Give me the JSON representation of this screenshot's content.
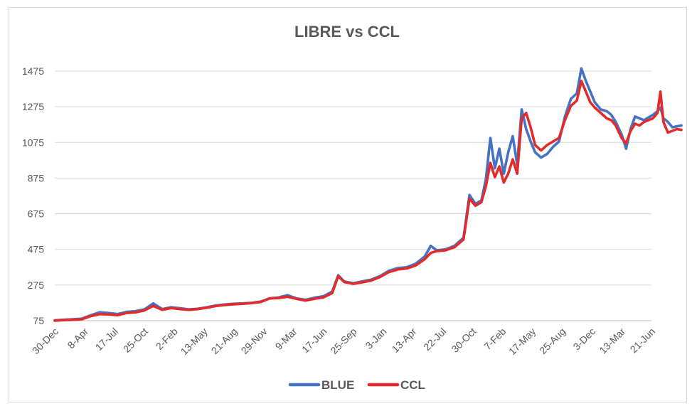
{
  "chart_data": {
    "type": "line",
    "title": "LIBRE vs CCL",
    "ylim": [
      75,
      1475
    ],
    "yticks": [
      75,
      275,
      475,
      675,
      875,
      1075,
      1275,
      1475
    ],
    "x_labels": [
      "30-Dec",
      "8-Apr",
      "17-Jul",
      "25-Oct",
      "2-Feb",
      "13-May",
      "21-Aug",
      "29-Nov",
      "9-Mar",
      "17-Jun",
      "25-Sep",
      "3-Jan",
      "13-Apr",
      "22-Jul",
      "30-Oct",
      "7-Feb",
      "17-May",
      "25-Aug",
      "3-Dec",
      "13-Mar",
      "21-Jun"
    ],
    "legend_position": "bottom",
    "grid": true,
    "series": [
      {
        "name": "BLUE",
        "color": "#4472c4",
        "values": [
          [
            0,
            77
          ],
          [
            0.3,
            80
          ],
          [
            0.6,
            83
          ],
          [
            0.9,
            86
          ],
          [
            1.2,
            105
          ],
          [
            1.5,
            122
          ],
          [
            1.8,
            118
          ],
          [
            2.1,
            112
          ],
          [
            2.4,
            124
          ],
          [
            2.7,
            128
          ],
          [
            3.0,
            138
          ],
          [
            3.3,
            172
          ],
          [
            3.6,
            140
          ],
          [
            3.9,
            150
          ],
          [
            4.2,
            145
          ],
          [
            4.5,
            138
          ],
          [
            4.8,
            142
          ],
          [
            5.1,
            150
          ],
          [
            5.4,
            160
          ],
          [
            5.7,
            166
          ],
          [
            6.0,
            170
          ],
          [
            6.3,
            172
          ],
          [
            6.6,
            175
          ],
          [
            6.9,
            182
          ],
          [
            7.2,
            200
          ],
          [
            7.5,
            205
          ],
          [
            7.8,
            218
          ],
          [
            8.1,
            200
          ],
          [
            8.4,
            192
          ],
          [
            8.7,
            204
          ],
          [
            9.0,
            212
          ],
          [
            9.3,
            238
          ],
          [
            9.5,
            330
          ],
          [
            9.7,
            295
          ],
          [
            10.0,
            285
          ],
          [
            10.3,
            295
          ],
          [
            10.6,
            305
          ],
          [
            10.9,
            325
          ],
          [
            11.2,
            355
          ],
          [
            11.5,
            370
          ],
          [
            11.8,
            375
          ],
          [
            12.1,
            395
          ],
          [
            12.4,
            435
          ],
          [
            12.6,
            495
          ],
          [
            12.8,
            470
          ],
          [
            13.1,
            475
          ],
          [
            13.4,
            495
          ],
          [
            13.7,
            540
          ],
          [
            13.9,
            780
          ],
          [
            14.1,
            730
          ],
          [
            14.3,
            750
          ],
          [
            14.45,
            870
          ],
          [
            14.6,
            1100
          ],
          [
            14.75,
            930
          ],
          [
            14.9,
            1040
          ],
          [
            15.05,
            900
          ],
          [
            15.2,
            1020
          ],
          [
            15.35,
            1110
          ],
          [
            15.5,
            950
          ],
          [
            15.65,
            1260
          ],
          [
            15.8,
            1150
          ],
          [
            15.95,
            1080
          ],
          [
            16.1,
            1020
          ],
          [
            16.3,
            990
          ],
          [
            16.5,
            1010
          ],
          [
            16.7,
            1050
          ],
          [
            16.9,
            1080
          ],
          [
            17.1,
            1220
          ],
          [
            17.3,
            1320
          ],
          [
            17.5,
            1350
          ],
          [
            17.65,
            1490
          ],
          [
            17.8,
            1420
          ],
          [
            17.95,
            1360
          ],
          [
            18.1,
            1300
          ],
          [
            18.3,
            1260
          ],
          [
            18.5,
            1250
          ],
          [
            18.65,
            1230
          ],
          [
            18.8,
            1190
          ],
          [
            19.0,
            1120
          ],
          [
            19.15,
            1040
          ],
          [
            19.3,
            1150
          ],
          [
            19.45,
            1220
          ],
          [
            19.6,
            1210
          ],
          [
            19.75,
            1200
          ],
          [
            19.9,
            1215
          ],
          [
            20.05,
            1230
          ],
          [
            20.2,
            1250
          ],
          [
            20.3,
            1270
          ],
          [
            20.4,
            1210
          ],
          [
            20.55,
            1190
          ],
          [
            20.7,
            1160
          ],
          [
            20.85,
            1165
          ],
          [
            21.0,
            1170
          ]
        ]
      },
      {
        "name": "CCL",
        "color": "#e32b2b",
        "values": [
          [
            0,
            75
          ],
          [
            0.3,
            78
          ],
          [
            0.6,
            80
          ],
          [
            0.9,
            83
          ],
          [
            1.2,
            100
          ],
          [
            1.5,
            112
          ],
          [
            1.8,
            110
          ],
          [
            2.1,
            106
          ],
          [
            2.4,
            118
          ],
          [
            2.7,
            122
          ],
          [
            3.0,
            132
          ],
          [
            3.3,
            158
          ],
          [
            3.6,
            136
          ],
          [
            3.9,
            146
          ],
          [
            4.2,
            140
          ],
          [
            4.5,
            136
          ],
          [
            4.8,
            140
          ],
          [
            5.1,
            148
          ],
          [
            5.4,
            157
          ],
          [
            5.7,
            163
          ],
          [
            6.0,
            167
          ],
          [
            6.3,
            170
          ],
          [
            6.6,
            174
          ],
          [
            6.9,
            180
          ],
          [
            7.2,
            200
          ],
          [
            7.5,
            202
          ],
          [
            7.8,
            210
          ],
          [
            8.1,
            198
          ],
          [
            8.4,
            188
          ],
          [
            8.7,
            198
          ],
          [
            9.0,
            206
          ],
          [
            9.3,
            230
          ],
          [
            9.5,
            325
          ],
          [
            9.7,
            292
          ],
          [
            10.0,
            282
          ],
          [
            10.3,
            290
          ],
          [
            10.6,
            300
          ],
          [
            10.9,
            320
          ],
          [
            11.2,
            348
          ],
          [
            11.5,
            362
          ],
          [
            11.8,
            368
          ],
          [
            12.1,
            385
          ],
          [
            12.4,
            420
          ],
          [
            12.6,
            455
          ],
          [
            12.8,
            465
          ],
          [
            13.1,
            470
          ],
          [
            13.4,
            488
          ],
          [
            13.7,
            530
          ],
          [
            13.9,
            760
          ],
          [
            14.1,
            720
          ],
          [
            14.3,
            740
          ],
          [
            14.45,
            830
          ],
          [
            14.6,
            960
          ],
          [
            14.75,
            880
          ],
          [
            14.9,
            940
          ],
          [
            15.05,
            850
          ],
          [
            15.2,
            900
          ],
          [
            15.35,
            980
          ],
          [
            15.5,
            900
          ],
          [
            15.65,
            1210
          ],
          [
            15.8,
            1240
          ],
          [
            15.95,
            1160
          ],
          [
            16.1,
            1060
          ],
          [
            16.3,
            1030
          ],
          [
            16.5,
            1060
          ],
          [
            16.7,
            1080
          ],
          [
            16.9,
            1100
          ],
          [
            17.1,
            1200
          ],
          [
            17.3,
            1280
          ],
          [
            17.5,
            1310
          ],
          [
            17.65,
            1420
          ],
          [
            17.8,
            1360
          ],
          [
            17.95,
            1300
          ],
          [
            18.1,
            1270
          ],
          [
            18.3,
            1240
          ],
          [
            18.5,
            1210
          ],
          [
            18.65,
            1200
          ],
          [
            18.8,
            1170
          ],
          [
            19.0,
            1100
          ],
          [
            19.15,
            1070
          ],
          [
            19.3,
            1140
          ],
          [
            19.45,
            1180
          ],
          [
            19.6,
            1170
          ],
          [
            19.75,
            1190
          ],
          [
            19.9,
            1200
          ],
          [
            20.05,
            1210
          ],
          [
            20.2,
            1240
          ],
          [
            20.3,
            1360
          ],
          [
            20.4,
            1190
          ],
          [
            20.55,
            1130
          ],
          [
            20.7,
            1140
          ],
          [
            20.85,
            1150
          ],
          [
            21.0,
            1145
          ]
        ]
      }
    ]
  }
}
